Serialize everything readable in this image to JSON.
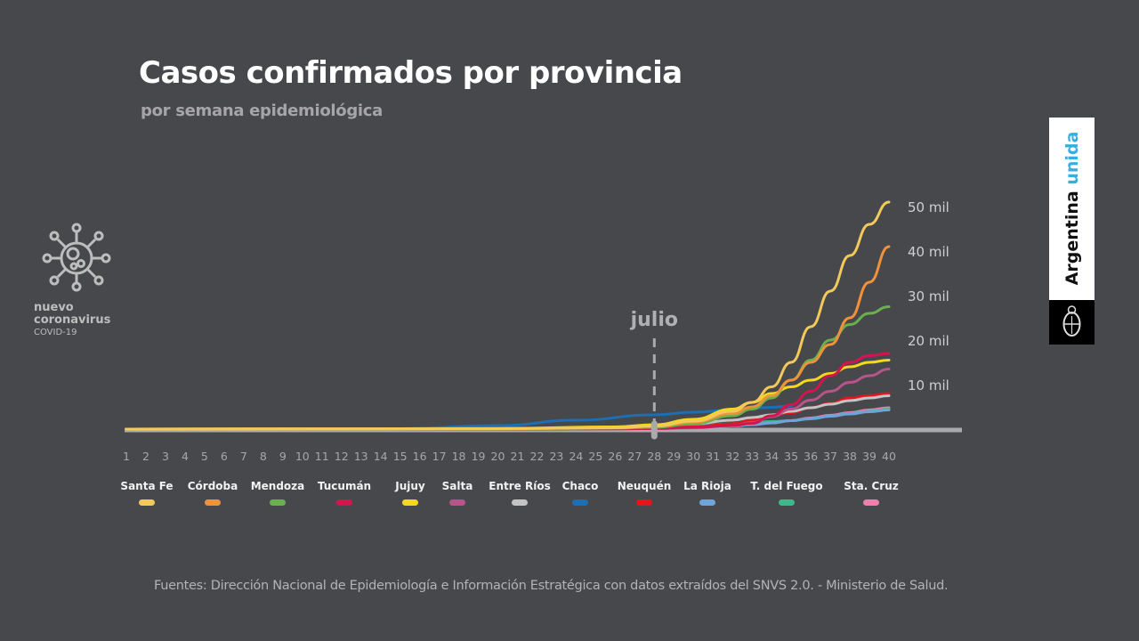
{
  "header": {
    "title": "Casos confirmados por provincia",
    "subtitle": "por semana epidemiológica"
  },
  "logo": {
    "line1": "nuevo",
    "line2": "coronavirus",
    "line3": "COVID-19",
    "icon": "virus-icon"
  },
  "badge": {
    "text_main": "Argentina",
    "text_accent": "unida",
    "icon": "coat-of-arms-icon",
    "accent_color": "#37aee2"
  },
  "footer": {
    "source": "Fuentes: Dirección Nacional de Epidemiología e Información Estratégica con datos extraídos del SNVS 2.0. - Ministerio de Salud."
  },
  "chart_data": {
    "type": "line",
    "title": "Casos confirmados por provincia",
    "subtitle": "por semana epidemiológica",
    "xlabel": "",
    "ylabel": "",
    "x": [
      1,
      2,
      3,
      4,
      5,
      6,
      7,
      8,
      9,
      10,
      11,
      12,
      13,
      14,
      15,
      16,
      17,
      18,
      19,
      20,
      21,
      22,
      23,
      24,
      25,
      26,
      27,
      28,
      29,
      30,
      31,
      32,
      33,
      34,
      35,
      36,
      37,
      38,
      39,
      40
    ],
    "xlim": [
      1,
      40
    ],
    "ylim": [
      0,
      50000
    ],
    "y_ticks": [
      {
        "value": 10000,
        "label": "10 mil"
      },
      {
        "value": 20000,
        "label": "20 mil"
      },
      {
        "value": 30000,
        "label": "30 mil"
      },
      {
        "value": 40000,
        "label": "40 mil"
      },
      {
        "value": 50000,
        "label": "50 mil"
      }
    ],
    "grid": false,
    "legend_position": "bottom",
    "annotation": {
      "label": "julio",
      "x": 28
    },
    "series": [
      {
        "name": "Santa Fe",
        "color": "#f3c95b",
        "points": [
          [
            1,
            0
          ],
          [
            20,
            100
          ],
          [
            26,
            300
          ],
          [
            28,
            700
          ],
          [
            30,
            1800
          ],
          [
            32,
            4000
          ],
          [
            33,
            6000
          ],
          [
            34,
            9500
          ],
          [
            35,
            15000
          ],
          [
            36,
            23000
          ],
          [
            37,
            31000
          ],
          [
            38,
            39000
          ],
          [
            39,
            46000
          ],
          [
            40,
            51000
          ]
        ]
      },
      {
        "name": "Córdoba",
        "color": "#f0923a",
        "points": [
          [
            1,
            0
          ],
          [
            20,
            100
          ],
          [
            26,
            300
          ],
          [
            28,
            600
          ],
          [
            30,
            1600
          ],
          [
            32,
            3500
          ],
          [
            33,
            5000
          ],
          [
            34,
            7500
          ],
          [
            35,
            11000
          ],
          [
            36,
            15000
          ],
          [
            37,
            19000
          ],
          [
            38,
            25000
          ],
          [
            39,
            33000
          ],
          [
            40,
            41000
          ]
        ]
      },
      {
        "name": "Mendoza",
        "color": "#6ab04c",
        "points": [
          [
            1,
            0
          ],
          [
            20,
            50
          ],
          [
            26,
            200
          ],
          [
            28,
            400
          ],
          [
            30,
            1200
          ],
          [
            32,
            3000
          ],
          [
            33,
            4500
          ],
          [
            34,
            7000
          ],
          [
            35,
            11000
          ],
          [
            36,
            15500
          ],
          [
            37,
            20000
          ],
          [
            38,
            23500
          ],
          [
            39,
            26000
          ],
          [
            40,
            27500
          ]
        ]
      },
      {
        "name": "Tucumán",
        "color": "#d3144e",
        "points": [
          [
            1,
            0
          ],
          [
            20,
            30
          ],
          [
            26,
            80
          ],
          [
            28,
            150
          ],
          [
            30,
            400
          ],
          [
            32,
            800
          ],
          [
            33,
            1300
          ],
          [
            34,
            3000
          ],
          [
            35,
            5500
          ],
          [
            36,
            8500
          ],
          [
            37,
            12000
          ],
          [
            38,
            15000
          ],
          [
            39,
            16500
          ],
          [
            40,
            17000
          ]
        ]
      },
      {
        "name": "Jujuy",
        "color": "#f5d81e",
        "points": [
          [
            1,
            0
          ],
          [
            20,
            150
          ],
          [
            26,
            500
          ],
          [
            28,
            1000
          ],
          [
            30,
            2200
          ],
          [
            32,
            4500
          ],
          [
            33,
            6000
          ],
          [
            34,
            8000
          ],
          [
            35,
            9500
          ],
          [
            36,
            11000
          ],
          [
            37,
            12500
          ],
          [
            38,
            14000
          ],
          [
            39,
            15000
          ],
          [
            40,
            15500
          ]
        ]
      },
      {
        "name": "Salta",
        "color": "#b5558a",
        "points": [
          [
            1,
            0
          ],
          [
            20,
            20
          ],
          [
            26,
            60
          ],
          [
            28,
            120
          ],
          [
            30,
            300
          ],
          [
            32,
            800
          ],
          [
            33,
            1500
          ],
          [
            34,
            2800
          ],
          [
            35,
            4500
          ],
          [
            36,
            6500
          ],
          [
            37,
            8500
          ],
          [
            38,
            10500
          ],
          [
            39,
            12000
          ],
          [
            40,
            13500
          ]
        ]
      },
      {
        "name": "Entre Ríos",
        "color": "#c4c4c6",
        "points": [
          [
            1,
            0
          ],
          [
            20,
            80
          ],
          [
            26,
            300
          ],
          [
            28,
            600
          ],
          [
            30,
            1200
          ],
          [
            32,
            2000
          ],
          [
            33,
            2600
          ],
          [
            34,
            3200
          ],
          [
            35,
            4000
          ],
          [
            36,
            4800
          ],
          [
            37,
            5600
          ],
          [
            38,
            6400
          ],
          [
            39,
            7000
          ],
          [
            40,
            7500
          ]
        ]
      },
      {
        "name": "Chaco",
        "color": "#1c6fb4",
        "points": [
          [
            1,
            0
          ],
          [
            15,
            100
          ],
          [
            20,
            800
          ],
          [
            24,
            2000
          ],
          [
            28,
            3200
          ],
          [
            30,
            3800
          ],
          [
            32,
            4300
          ],
          [
            34,
            4900
          ],
          [
            35,
            5200
          ]
        ]
      },
      {
        "name": "Neuquén",
        "color": "#e8141b",
        "points": [
          [
            1,
            0
          ],
          [
            20,
            30
          ],
          [
            26,
            100
          ],
          [
            28,
            200
          ],
          [
            30,
            500
          ],
          [
            32,
            1200
          ],
          [
            33,
            2000
          ],
          [
            34,
            3000
          ],
          [
            35,
            3700
          ],
          [
            36,
            4800
          ],
          [
            37,
            5800
          ],
          [
            38,
            7000
          ],
          [
            39,
            7500
          ],
          [
            40,
            8000
          ]
        ]
      },
      {
        "name": "La Rioja",
        "color": "#6ea4dc",
        "points": [
          [
            1,
            0
          ],
          [
            20,
            20
          ],
          [
            26,
            60
          ],
          [
            28,
            120
          ],
          [
            30,
            300
          ],
          [
            32,
            700
          ],
          [
            33,
            1000
          ],
          [
            34,
            1400
          ],
          [
            35,
            1900
          ],
          [
            36,
            2400
          ],
          [
            37,
            2900
          ],
          [
            38,
            3400
          ],
          [
            39,
            3900
          ],
          [
            40,
            4300
          ]
        ]
      },
      {
        "name": "T. del Fuego",
        "color": "#3db88b",
        "points": [
          [
            1,
            0
          ],
          [
            20,
            20
          ],
          [
            26,
            80
          ],
          [
            28,
            200
          ],
          [
            30,
            600
          ],
          [
            32,
            1200
          ],
          [
            33,
            1500
          ],
          [
            34,
            1700
          ],
          [
            35,
            1900
          ],
          [
            36,
            2300
          ],
          [
            37,
            2900
          ],
          [
            38,
            3500
          ],
          [
            39,
            4000
          ],
          [
            40,
            4500
          ]
        ]
      },
      {
        "name": "Sta. Cruz",
        "color": "#ef7fae",
        "points": [
          [
            1,
            0
          ],
          [
            20,
            20
          ],
          [
            26,
            60
          ],
          [
            28,
            120
          ],
          [
            30,
            300
          ],
          [
            32,
            700
          ],
          [
            33,
            1000
          ],
          [
            34,
            1400
          ],
          [
            35,
            1900
          ],
          [
            36,
            2500
          ],
          [
            37,
            3100
          ],
          [
            38,
            3700
          ],
          [
            39,
            4300
          ],
          [
            40,
            4800
          ]
        ]
      }
    ]
  }
}
